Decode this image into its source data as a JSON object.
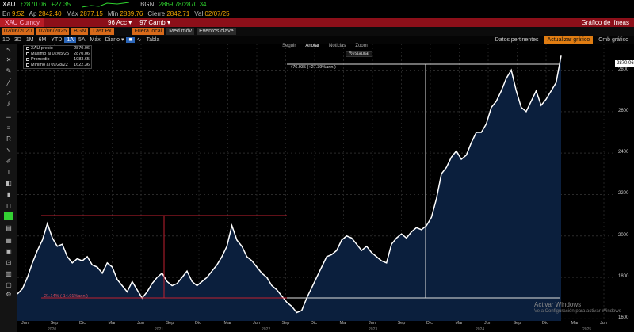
{
  "quote": {
    "ticker": "XAU",
    "arrow": "↑",
    "last": "2870.06",
    "change": "+27.35",
    "source": "BGN",
    "bid_ask": "2869.78/2870.34",
    "bid_ask_sep": "/",
    "en_label": "En",
    "time": "9:52",
    "ap_label": "Ap",
    "open": "2842.40",
    "max_label": "Máx",
    "high": "2877.15",
    "min_label": "Mín",
    "low": "2839.76",
    "close_label": "Cierre",
    "prev_close": "2842.71",
    "val_label": "Val",
    "date": "02/07/25"
  },
  "security_bar": {
    "security": "XAU Curncy",
    "menu_actions": "96 Acc ▾",
    "menu_camb": "97 Camb ▾",
    "title": "Gráfico de líneas"
  },
  "settings_bar": {
    "start_date": "02/06/2020",
    "end_date": "02/06/2025",
    "currency": "BGN",
    "price_type": "Last Px",
    "period": "Fuera local",
    "med_mov": "Med móv",
    "eventos": "Eventos clave"
  },
  "time_bar": {
    "frames": [
      "1D",
      "3D",
      "1M",
      "6M",
      "YTD",
      "1A",
      "5A",
      "Máx"
    ],
    "selected": "1A",
    "freq": "Diario ▾",
    "tabla": "Tabla",
    "datos": "Datos pertinentes",
    "actualizar": "Actualizar gráfico",
    "cmb": "Cmb gráfico"
  },
  "chart_modes": {
    "items": [
      "Seguir",
      "Anotar",
      "Noticias",
      "Zoom"
    ],
    "selected": "Anotar",
    "restore": "Restaurar"
  },
  "legend": {
    "rows": [
      {
        "label": "XAU precio",
        "value": "2870.06"
      },
      {
        "label": "Máximo al 02/05/25",
        "value": "2870.06"
      },
      {
        "label": "Promedio",
        "value": "1983.65"
      },
      {
        "label": "Mínimo al 09/28/22",
        "value": "1622.36"
      }
    ]
  },
  "annotations": {
    "up_measure": "+76.935 (+27.39%ann.)",
    "down_measure": "-21.14% (-14.01%ann.)"
  },
  "price_flag": "2870.06",
  "colors": {
    "series_line": "#ffffff",
    "fill": "#0b1f3d",
    "red_bar": "#8c0f19",
    "accent_orange": "#e07d12",
    "up_green": "#2fd52f",
    "amber": "#f5a800"
  },
  "watermark": {
    "line1": "Activar Windows",
    "line2": "Ve a Configuración para activar Windows"
  },
  "chart_data": {
    "type": "area",
    "yticks": [
      1600,
      1800,
      2000,
      2200,
      2400,
      2600,
      2800
    ],
    "ylim": [
      1590,
      2890
    ],
    "xlabels": [
      "Jun",
      "Sep",
      "Dic",
      "Mar",
      "Jun",
      "Sep",
      "Dic",
      "Mar",
      "Jun",
      "Sep",
      "Dic",
      "Mar",
      "Jun",
      "Sep",
      "Dic",
      "Mar",
      "Jun",
      "Sep",
      "Dic",
      "Mar",
      "Jun"
    ],
    "year_labels": [
      "2020",
      "2021",
      "2022",
      "2023",
      "2024",
      "2025"
    ],
    "series": [
      {
        "values": [
          1720,
          1745,
          1800,
          1870,
          1930,
          1980,
          2060,
          1990,
          1950,
          1960,
          1900,
          1870,
          1890,
          1880,
          1900,
          1860,
          1850,
          1820,
          1870,
          1850,
          1790,
          1760,
          1730,
          1780,
          1740,
          1700,
          1730,
          1770,
          1800,
          1820,
          1780,
          1760,
          1770,
          1800,
          1830,
          1780,
          1760,
          1780,
          1800,
          1830,
          1860,
          1900,
          1950,
          2050,
          1980,
          1950,
          1900,
          1880,
          1850,
          1820,
          1800,
          1760,
          1740,
          1710,
          1680,
          1660,
          1630,
          1640,
          1700,
          1750,
          1800,
          1850,
          1900,
          1910,
          1930,
          1980,
          2000,
          1990,
          1960,
          1930,
          1950,
          1920,
          1900,
          1880,
          1870,
          1960,
          1990,
          2010,
          1990,
          2020,
          2040,
          2030,
          2050,
          2090,
          2180,
          2300,
          2330,
          2380,
          2410,
          2370,
          2390,
          2450,
          2500,
          2500,
          2540,
          2620,
          2650,
          2700,
          2760,
          2800,
          2700,
          2620,
          2600,
          2650,
          2700,
          2630,
          2660,
          2700,
          2740,
          2870
        ]
      }
    ]
  }
}
